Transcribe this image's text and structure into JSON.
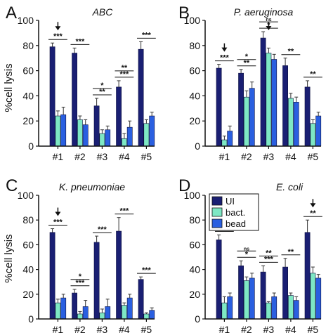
{
  "figure": {
    "ylabel": "%cell lysis",
    "legend": {
      "entries": [
        {
          "label": "UI",
          "color": "#1a1f73"
        },
        {
          "label": "bact.",
          "color": "#7ee8c4"
        },
        {
          "label": "bead",
          "color": "#2a5fe0"
        }
      ]
    }
  },
  "chart_data": [
    {
      "panel": "A",
      "title": "ABC",
      "type": "bar",
      "categories": [
        "#1",
        "#2",
        "#3",
        "#4",
        "#5"
      ],
      "yticks": [
        "0",
        "20",
        "40",
        "60",
        "80",
        "100"
      ],
      "ylim": [
        0,
        100
      ],
      "series": [
        {
          "name": "UI",
          "values": [
            79,
            74,
            32,
            47,
            77
          ],
          "errors": [
            3,
            4,
            6,
            5,
            6
          ]
        },
        {
          "name": "bact.",
          "values": [
            24,
            21,
            10,
            6,
            18
          ],
          "errors": [
            4,
            3,
            3,
            4,
            3
          ]
        },
        {
          "name": "bead",
          "values": [
            25,
            17,
            13,
            15,
            24
          ],
          "errors": [
            6,
            4,
            3,
            5,
            3
          ]
        }
      ],
      "arrow_category": 0,
      "annotations": [
        {
          "category": 0,
          "stars": [
            "***"
          ]
        },
        {
          "category": 1,
          "stars": [
            "***"
          ]
        },
        {
          "category": 2,
          "stars": [
            "*",
            "**"
          ]
        },
        {
          "category": 3,
          "stars": [
            "**",
            "***"
          ]
        },
        {
          "category": 4,
          "stars": [
            "***"
          ]
        }
      ]
    },
    {
      "panel": "B",
      "title": "P. aeruginosa",
      "type": "bar",
      "categories": [
        "#1",
        "#2",
        "#3",
        "#4",
        "#5"
      ],
      "yticks": [
        "0",
        "20",
        "40",
        "60",
        "80",
        "100"
      ],
      "ylim": [
        0,
        100
      ],
      "series": [
        {
          "name": "UI",
          "values": [
            62,
            58,
            86,
            64,
            47
          ],
          "errors": [
            3,
            3,
            5,
            6,
            5
          ]
        },
        {
          "name": "bact.",
          "values": [
            5,
            39,
            74,
            38,
            18
          ],
          "errors": [
            3,
            5,
            4,
            4,
            3
          ]
        },
        {
          "name": "bead",
          "values": [
            12,
            46,
            69,
            35,
            24
          ],
          "errors": [
            4,
            5,
            4,
            4,
            3
          ]
        }
      ],
      "arrow_category": 0,
      "arrow_category_2": 2,
      "annotations": [
        {
          "category": 0,
          "stars": [
            "***"
          ]
        },
        {
          "category": 1,
          "stars": [
            "*",
            "**"
          ]
        },
        {
          "category": 2,
          "stars": [
            "ns",
            "*"
          ]
        },
        {
          "category": 3,
          "stars": [
            "**"
          ]
        },
        {
          "category": 4,
          "stars": [
            "**"
          ]
        }
      ]
    },
    {
      "panel": "C",
      "title": "K. pneumoniae",
      "type": "bar",
      "categories": [
        "#1",
        "#2",
        "#3",
        "#4",
        "#5"
      ],
      "yticks": [
        "0",
        "20",
        "40",
        "60",
        "80",
        "100"
      ],
      "ylim": [
        0,
        100
      ],
      "series": [
        {
          "name": "UI",
          "values": [
            70,
            21,
            62,
            71,
            32
          ],
          "errors": [
            3,
            3,
            5,
            11,
            2
          ]
        },
        {
          "name": "bact.",
          "values": [
            13,
            4,
            5,
            11,
            4
          ],
          "errors": [
            3,
            2,
            3,
            2,
            1
          ]
        },
        {
          "name": "bead",
          "values": [
            17,
            10,
            10,
            17,
            7
          ],
          "errors": [
            3,
            5,
            6,
            3,
            2
          ]
        }
      ],
      "arrow_category": 0,
      "annotations": [
        {
          "category": 0,
          "stars": [
            "***"
          ]
        },
        {
          "category": 1,
          "stars": [
            "*",
            "***"
          ]
        },
        {
          "category": 2,
          "stars": [
            "***"
          ]
        },
        {
          "category": 3,
          "stars": [
            "***"
          ]
        },
        {
          "category": 4,
          "stars": [
            "***"
          ]
        }
      ]
    },
    {
      "panel": "D",
      "title": "E. coli",
      "type": "bar",
      "categories": [
        "#1",
        "#2",
        "#3",
        "#4",
        "#5"
      ],
      "yticks": [
        "0",
        "20",
        "40",
        "60",
        "80",
        "100"
      ],
      "ylim": [
        0,
        100
      ],
      "series": [
        {
          "name": "UI",
          "values": [
            64,
            43,
            38,
            42,
            70
          ],
          "errors": [
            4,
            4,
            5,
            7,
            10
          ]
        },
        {
          "name": "bact.",
          "values": [
            13,
            31,
            13,
            19,
            37
          ],
          "errors": [
            5,
            3,
            1,
            2,
            5
          ]
        },
        {
          "name": "bead",
          "values": [
            18,
            33,
            18,
            15,
            33
          ],
          "errors": [
            3,
            4,
            3,
            3,
            3
          ]
        }
      ],
      "arrow_category": 4,
      "annotations": [
        {
          "category": 0,
          "stars": [
            "***"
          ]
        },
        {
          "category": 1,
          "stars": [
            "ns",
            "*"
          ]
        },
        {
          "category": 2,
          "stars": [
            "**",
            "***"
          ]
        },
        {
          "category": 3,
          "stars": [
            "**"
          ]
        },
        {
          "category": 4,
          "stars": [
            "**"
          ]
        }
      ]
    }
  ]
}
